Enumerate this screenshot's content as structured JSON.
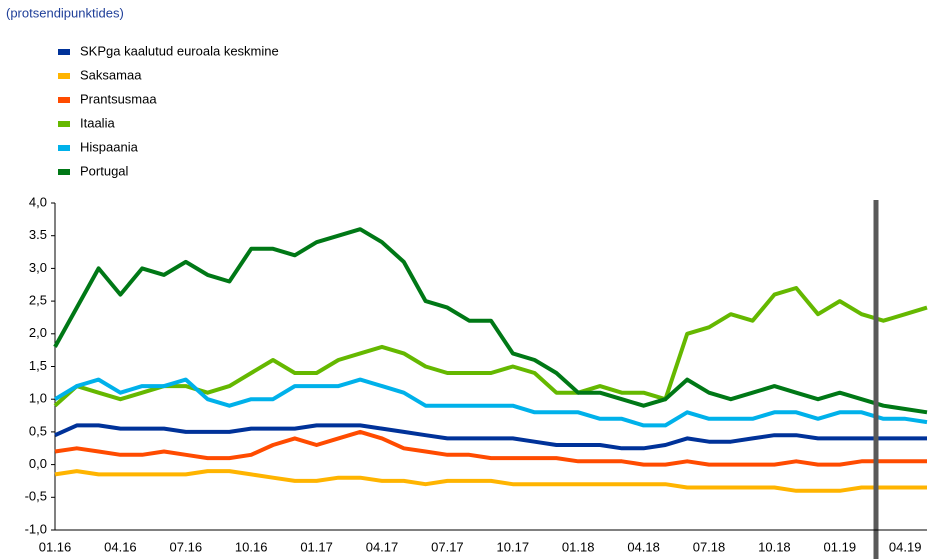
{
  "chart_data": {
    "type": "line",
    "subtitle": "(protsendipunktides)",
    "categories": [
      "01.16",
      null,
      null,
      "04.16",
      null,
      null,
      "07.16",
      null,
      null,
      "10.16",
      null,
      null,
      "01.17",
      null,
      null,
      "04.17",
      null,
      null,
      "07.17",
      null,
      null,
      "10.17",
      null,
      null,
      "01.18",
      null,
      null,
      "04.18",
      null,
      null,
      "07.18",
      null,
      null,
      "10.18",
      null,
      null,
      "01.19",
      null,
      null,
      "04.19",
      null
    ],
    "ylim": [
      -1.0,
      4.0
    ],
    "yticks": [
      {
        "value": 4.0,
        "label": "4,0"
      },
      {
        "value": 3.5,
        "label": "3.5"
      },
      {
        "value": 3.0,
        "label": "3,0"
      },
      {
        "value": 2.5,
        "label": "2,5"
      },
      {
        "value": 2.0,
        "label": "2,0"
      },
      {
        "value": 1.5,
        "label": "1,5"
      },
      {
        "value": 1.0,
        "label": "1,0"
      },
      {
        "value": 0.5,
        "label": "0,5"
      },
      {
        "value": 0.0,
        "label": "0,0"
      },
      {
        "value": -0.5,
        "label": "-0,5"
      },
      {
        "value": -1.0,
        "label": "-1,0"
      }
    ],
    "series": [
      {
        "name": "SKPga kaalutud euroala keskmine",
        "color": "#003299",
        "values": [
          0.45,
          0.6,
          0.6,
          0.55,
          0.55,
          0.55,
          0.5,
          0.5,
          0.5,
          0.55,
          0.55,
          0.55,
          0.6,
          0.6,
          0.6,
          0.55,
          0.5,
          0.45,
          0.4,
          0.4,
          0.4,
          0.4,
          0.35,
          0.3,
          0.3,
          0.3,
          0.25,
          0.25,
          0.3,
          0.4,
          0.35,
          0.35,
          0.4,
          0.45,
          0.45,
          0.4,
          0.4,
          0.4,
          0.4,
          0.4,
          0.4
        ]
      },
      {
        "name": "Saksamaa",
        "color": "#ffb400",
        "values": [
          -0.15,
          -0.1,
          -0.15,
          -0.15,
          -0.15,
          -0.15,
          -0.15,
          -0.1,
          -0.1,
          -0.15,
          -0.2,
          -0.25,
          -0.25,
          -0.2,
          -0.2,
          -0.25,
          -0.25,
          -0.3,
          -0.25,
          -0.25,
          -0.25,
          -0.3,
          -0.3,
          -0.3,
          -0.3,
          -0.3,
          -0.3,
          -0.3,
          -0.3,
          -0.35,
          -0.35,
          -0.35,
          -0.35,
          -0.35,
          -0.4,
          -0.4,
          -0.4,
          -0.35,
          -0.35,
          -0.35,
          -0.35
        ]
      },
      {
        "name": "Prantsusmaa",
        "color": "#ff4b00",
        "values": [
          0.2,
          0.25,
          0.2,
          0.15,
          0.15,
          0.2,
          0.15,
          0.1,
          0.1,
          0.15,
          0.3,
          0.4,
          0.3,
          0.4,
          0.5,
          0.4,
          0.25,
          0.2,
          0.15,
          0.15,
          0.1,
          0.1,
          0.1,
          0.1,
          0.05,
          0.05,
          0.05,
          0.0,
          0.0,
          0.05,
          0.0,
          0.0,
          0.0,
          0.0,
          0.05,
          0.0,
          0.0,
          0.05,
          0.05,
          0.05,
          0.05
        ]
      },
      {
        "name": "Itaalia",
        "color": "#65b800",
        "values": [
          0.9,
          1.2,
          1.1,
          1.0,
          1.1,
          1.2,
          1.2,
          1.1,
          1.2,
          1.4,
          1.6,
          1.4,
          1.4,
          1.6,
          1.7,
          1.8,
          1.7,
          1.5,
          1.4,
          1.4,
          1.4,
          1.5,
          1.4,
          1.1,
          1.1,
          1.2,
          1.1,
          1.1,
          1.0,
          2.0,
          2.1,
          2.3,
          2.2,
          2.6,
          2.7,
          2.3,
          2.5,
          2.3,
          2.2,
          2.3,
          2.4
        ]
      },
      {
        "name": "Hispaania",
        "color": "#00b1ea",
        "values": [
          1.0,
          1.2,
          1.3,
          1.1,
          1.2,
          1.2,
          1.3,
          1.0,
          0.9,
          1.0,
          1.0,
          1.2,
          1.2,
          1.2,
          1.3,
          1.2,
          1.1,
          0.9,
          0.9,
          0.9,
          0.9,
          0.9,
          0.8,
          0.8,
          0.8,
          0.7,
          0.7,
          0.6,
          0.6,
          0.8,
          0.7,
          0.7,
          0.7,
          0.8,
          0.8,
          0.7,
          0.8,
          0.8,
          0.7,
          0.7,
          0.65
        ]
      },
      {
        "name": "Portugal",
        "color": "#007816",
        "values": [
          1.8,
          2.4,
          3.0,
          2.6,
          3.0,
          2.9,
          3.1,
          2.9,
          2.8,
          3.3,
          3.3,
          3.2,
          3.4,
          3.5,
          3.6,
          3.4,
          3.1,
          2.5,
          2.4,
          2.2,
          2.2,
          1.7,
          1.6,
          1.4,
          1.1,
          1.1,
          1.0,
          0.9,
          1.0,
          1.3,
          1.1,
          1.0,
          1.1,
          1.2,
          1.1,
          1.0,
          1.1,
          1.0,
          0.9,
          0.85,
          0.8
        ]
      }
    ]
  }
}
